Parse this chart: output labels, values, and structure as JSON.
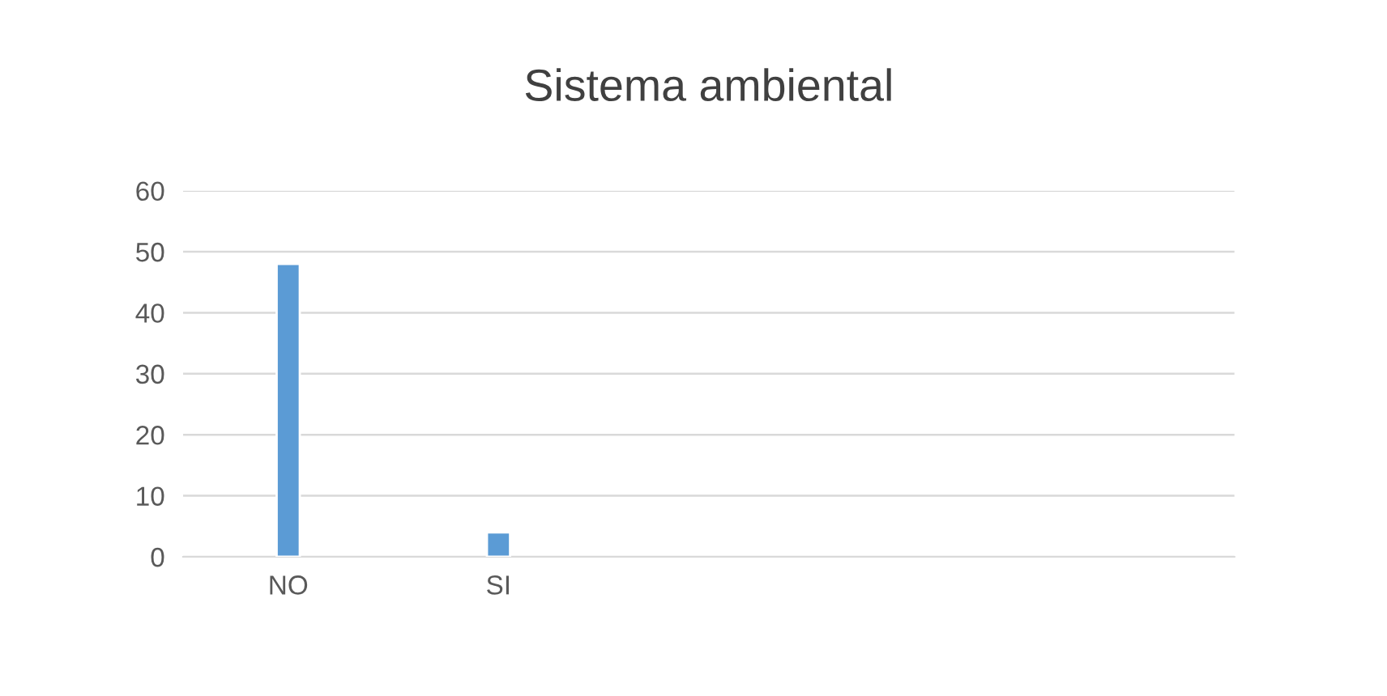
{
  "chart_data": {
    "type": "bar",
    "title": "Sistema ambiental",
    "categories": [
      "NO",
      "SI",
      null,
      null,
      null
    ],
    "values": [
      48,
      4,
      null,
      null,
      null
    ],
    "color": "#5b9bd5",
    "ylim": [
      0,
      60
    ],
    "yticks": [
      0,
      10,
      20,
      30,
      40,
      50,
      60
    ],
    "grid": "y",
    "legend": false
  }
}
